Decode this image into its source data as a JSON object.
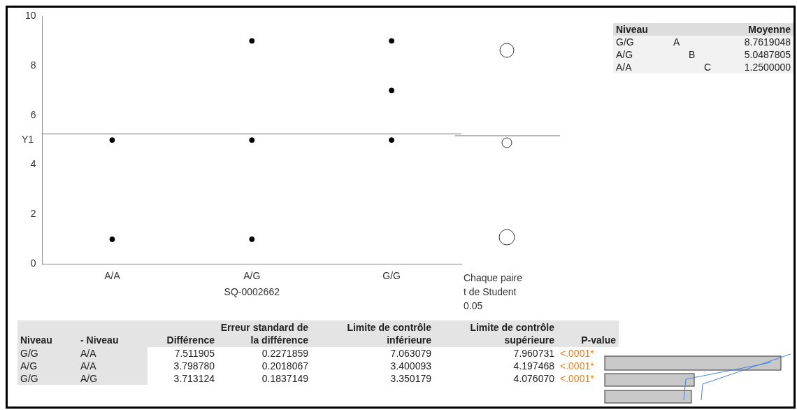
{
  "chart_data": {
    "type": "scatter",
    "categories": [
      "A/A",
      "A/G",
      "G/G"
    ],
    "series": [
      {
        "x": [
          "A/A",
          "A/A",
          "A/G",
          "A/G",
          "A/G",
          "G/G",
          "G/G",
          "G/G"
        ],
        "values": [
          5,
          1,
          9,
          5,
          1,
          9,
          7,
          5
        ],
        "color": "#000000"
      }
    ],
    "xlabel": "SQ-0002662",
    "ylabel": "Y1",
    "ylim": [
      0,
      10
    ],
    "yticks": [
      0,
      2,
      4,
      6,
      8,
      10
    ],
    "grid": false,
    "legend": false,
    "marker": "circle",
    "ref_lines": [
      {
        "axis": "y",
        "value": 5.25
      }
    ],
    "annotations": [
      "Chaque paire",
      "t de Student",
      "0.05",
      "Niveau",
      "Moyenne",
      "G/G",
      "A",
      "8.7619048",
      "A/G",
      "B",
      "5.0487805",
      "A/A",
      "C",
      "1.2500000",
      "Niveau",
      "- Niveau",
      "Différence",
      "Erreur standard de la différence",
      "Limite de contrôle inférieure",
      "Limite de contrôle supérieure",
      "P-value",
      "G/G",
      "A/A",
      "7.511905",
      "0.2271859",
      "7.063079",
      "7.960731",
      "<.0001*",
      "A/G",
      "A/A",
      "3.798780",
      "0.2018067",
      "3.400093",
      "4.197468",
      "<.0001*",
      "G/G",
      "A/G",
      "3.713124",
      "0.1837149",
      "3.350179",
      "4.076070",
      "<.0001*"
    ]
  }
}
